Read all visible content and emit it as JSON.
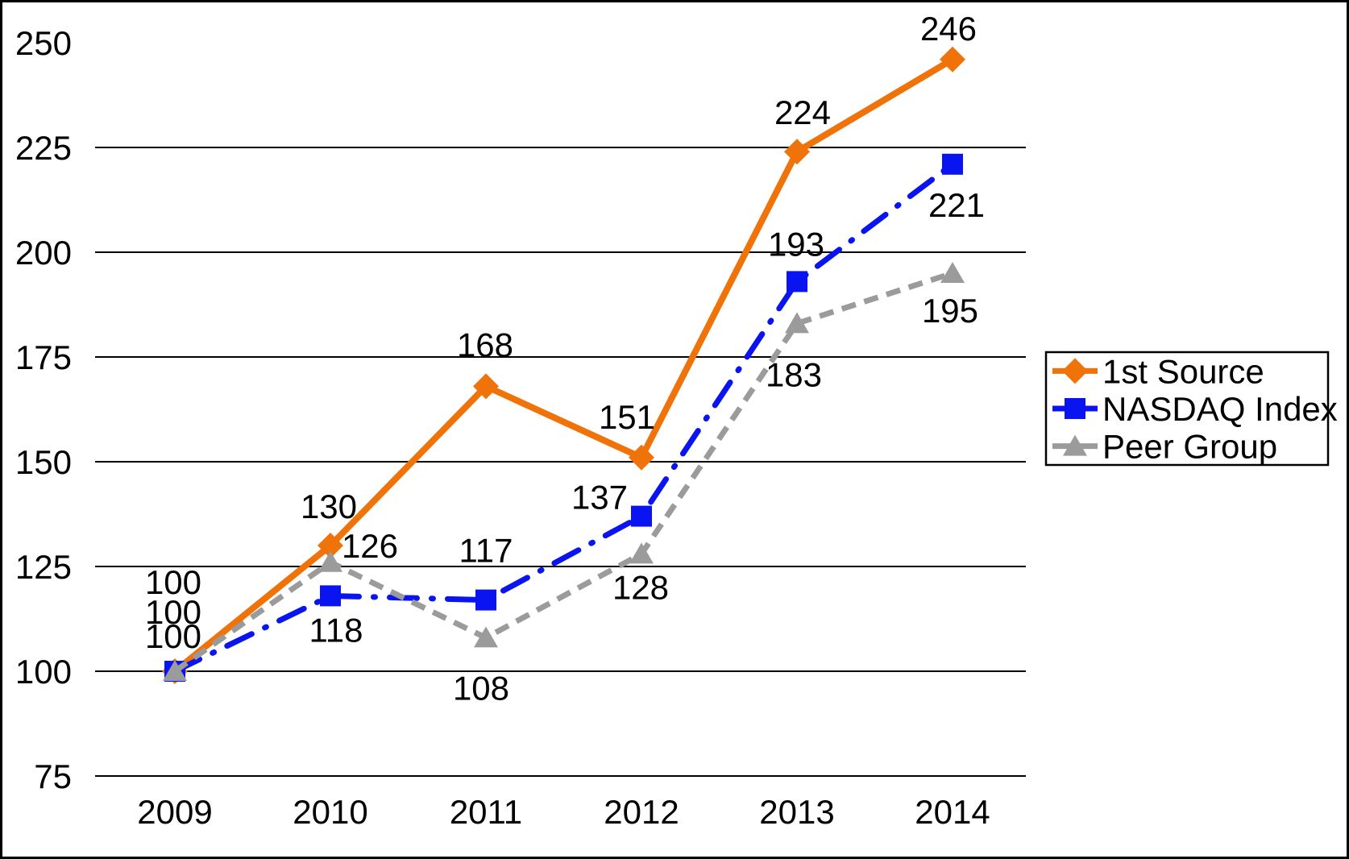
{
  "chart_data": {
    "type": "line",
    "title": "",
    "xlabel": "",
    "ylabel": "",
    "categories": [
      "2009",
      "2010",
      "2011",
      "2012",
      "2013",
      "2014"
    ],
    "ylim": [
      75,
      250
    ],
    "y_ticks": [
      250,
      225,
      200,
      175,
      150,
      125,
      100,
      75
    ],
    "grid": "horizontal-only, no line at 250",
    "legend_position": "right",
    "series": [
      {
        "name": "1st Source",
        "color": "#F0730A",
        "marker": "diamond",
        "line_style": "solid",
        "values": [
          100,
          130,
          168,
          151,
          224,
          246
        ],
        "label_offsets": [
          [
            -2,
            -111
          ],
          [
            -2,
            -49
          ],
          [
            -1,
            -52
          ],
          [
            -18,
            -51
          ],
          [
            7,
            -49
          ],
          [
            -5,
            -39
          ]
        ]
      },
      {
        "name": "NASDAQ Index",
        "color": "#0A14F0",
        "marker": "square",
        "line_style": "dashdot",
        "values": [
          100,
          118,
          117,
          137,
          193,
          221
        ],
        "label_offsets": [
          [
            -2,
            -74
          ],
          [
            7,
            42
          ],
          [
            0,
            -62
          ],
          [
            -52,
            -24
          ],
          [
            -1,
            -47
          ],
          [
            5,
            50
          ]
        ]
      },
      {
        "name": "Peer Group",
        "color": "#9B9B9B",
        "marker": "triangle",
        "line_style": "dashed",
        "values": [
          100,
          126,
          108,
          128,
          183,
          195
        ],
        "label_offsets": [
          [
            -2,
            -44
          ],
          [
            49,
            -21
          ],
          [
            -6,
            62
          ],
          [
            -1,
            41
          ],
          [
            -4,
            63
          ],
          [
            -3,
            46
          ]
        ]
      }
    ],
    "colors": {
      "text": "#000000",
      "gridline": "#000000",
      "background": "#FFFFFF",
      "frame_border": "#000000",
      "legend_border": "#000000",
      "legend_background": "#FFFFFF"
    }
  }
}
